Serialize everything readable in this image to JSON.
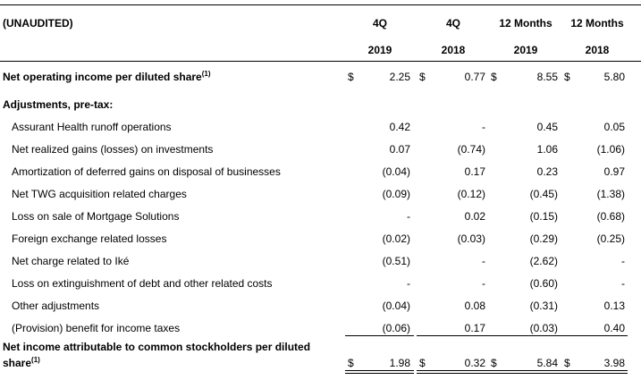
{
  "header": {
    "unaudited": "(UNAUDITED)",
    "columns": [
      {
        "period": "4Q",
        "year": "2019"
      },
      {
        "period": "4Q",
        "year": "2018"
      },
      {
        "period": "12 Months",
        "year": "2019"
      },
      {
        "period": "12 Months",
        "year": "2018"
      }
    ]
  },
  "currency": "$",
  "footnote_mark": "(1)",
  "net_operating": {
    "label": "Net operating income per diluted share",
    "values": [
      "2.25",
      "0.77",
      "8.55",
      "5.80"
    ]
  },
  "adjustments_heading": "Adjustments, pre-tax:",
  "adjustments": [
    {
      "label": "Assurant Health runoff operations",
      "values": [
        "0.42",
        "-",
        "0.45",
        "0.05"
      ]
    },
    {
      "label": "Net realized gains (losses) on investments",
      "values": [
        "0.07",
        "(0.74)",
        "1.06",
        "(1.06)"
      ]
    },
    {
      "label": "Amortization of deferred gains on disposal of businesses",
      "values": [
        "(0.04)",
        "0.17",
        "0.23",
        "0.97"
      ]
    },
    {
      "label": "Net TWG acquisition related charges",
      "values": [
        "(0.09)",
        "(0.12)",
        "(0.45)",
        "(1.38)"
      ]
    },
    {
      "label": "Loss on sale of Mortgage Solutions",
      "values": [
        "-",
        "0.02",
        "(0.15)",
        "(0.68)"
      ]
    },
    {
      "label": "Foreign exchange related losses",
      "values": [
        "(0.02)",
        "(0.03)",
        "(0.29)",
        "(0.25)"
      ]
    },
    {
      "label": "Net charge related to Iké",
      "values": [
        "(0.51)",
        "-",
        "(2.62)",
        "-"
      ]
    },
    {
      "label": "Loss on extinguishment of debt and other related costs",
      "values": [
        "-",
        "-",
        "(0.60)",
        "-"
      ]
    },
    {
      "label": "Other adjustments",
      "values": [
        "(0.04)",
        "0.08",
        "(0.31)",
        "0.13"
      ]
    },
    {
      "label": "(Provision) benefit for income taxes",
      "values": [
        "(0.06)",
        "0.17",
        "(0.03)",
        "0.40"
      ]
    }
  ],
  "net_income": {
    "label_line1": "Net income attributable to common stockholders per diluted",
    "label_line2": "share",
    "values": [
      "1.98",
      "0.32",
      "5.84",
      "3.98"
    ]
  }
}
